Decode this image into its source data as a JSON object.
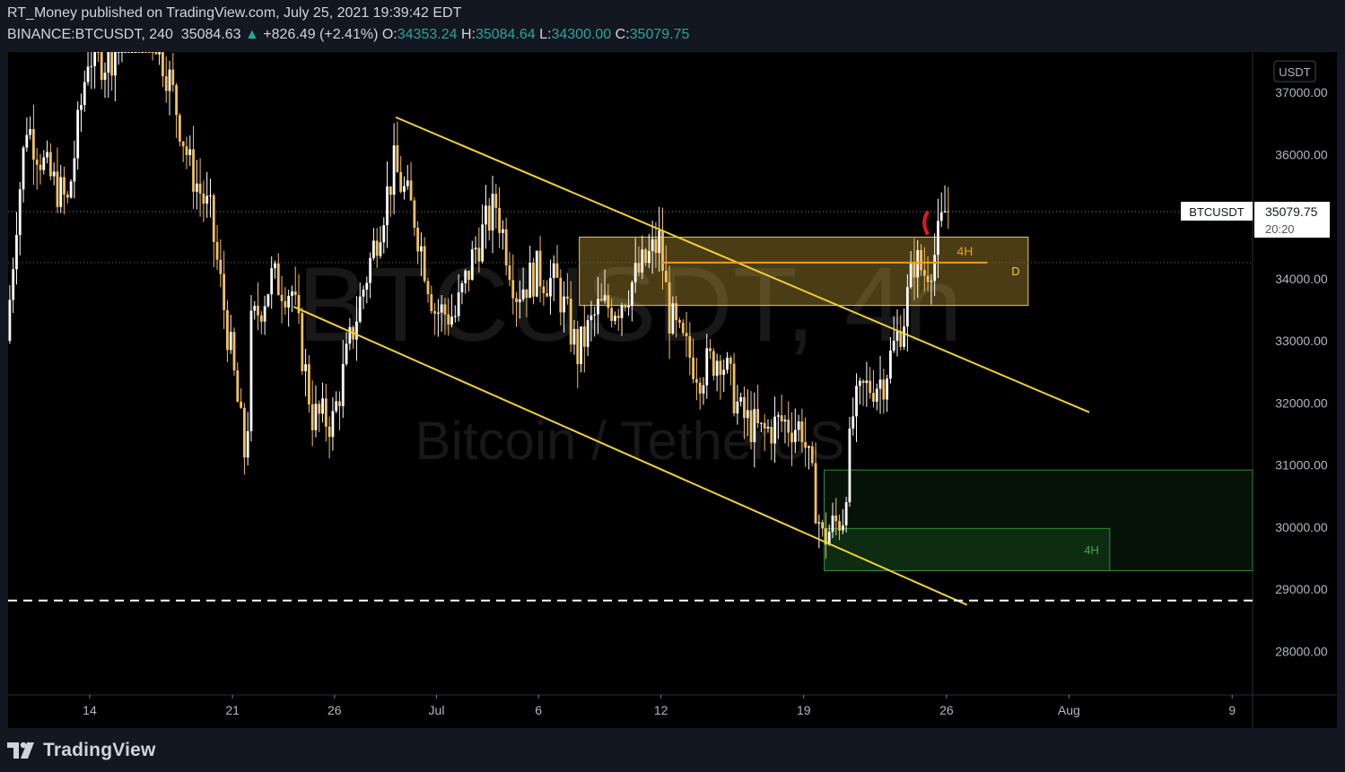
{
  "header": {
    "published_line": "RT_Money published on TradingView.com, July 25, 2021 19:39:42 EDT",
    "symbol_interval": "BINANCE:BTCUSDT, 240",
    "last": "35084.63",
    "change": "+826.49 (+2.41%)",
    "open_label": "O:",
    "open": "34353.24",
    "high_label": "H:",
    "high": "35084.64",
    "low_label": "L:",
    "low": "34300.00",
    "close_label": "C:",
    "close": "35079.75"
  },
  "footer": {
    "brand": "TradingView"
  },
  "colors": {
    "background": "#000000",
    "frame": "#131722",
    "candle": "#f5c060",
    "candle_light": "#ffffff",
    "trendline": "#f0d130",
    "resistance_zone": "#f5c842",
    "support_zone": "#2e8b3a",
    "level_line": "#f29a1e",
    "marker": "#e01a1a",
    "up_text": "#26a69a"
  },
  "chart_data": {
    "type": "candlestick",
    "symbol": "BTCUSDT",
    "watermark_symbol": "BTCUSDT, 4h",
    "watermark_name": "Bitcoin / TetherUS",
    "currency_badge": "USDT",
    "price_label": "35079.75",
    "price_label_symbol": "BTCUSDT",
    "countdown": "20:20",
    "ylim": [
      27300,
      37650
    ],
    "y_ticks": [
      28000,
      29000,
      30000,
      31000,
      32000,
      33000,
      34000,
      35000,
      36000,
      37000
    ],
    "y_tick_labels": [
      "28000.00",
      "29000.00",
      "30000.00",
      "31000.00",
      "32000.00",
      "33000.00",
      "34000.00",
      "35000.00",
      "36000.00",
      "37000.00"
    ],
    "x_start": "2021-06-10",
    "x_end": "2021-08-10",
    "x_ticks": [
      {
        "date": "2021-06-14",
        "label": "14"
      },
      {
        "date": "2021-06-21",
        "label": "21"
      },
      {
        "date": "2021-06-26",
        "label": "26"
      },
      {
        "date": "2021-07-01",
        "label": "Jul"
      },
      {
        "date": "2021-07-06",
        "label": "6"
      },
      {
        "date": "2021-07-12",
        "label": "12"
      },
      {
        "date": "2021-07-19",
        "label": "19"
      },
      {
        "date": "2021-07-26",
        "label": "26"
      },
      {
        "date": "2021-08-01",
        "label": "Aug"
      },
      {
        "date": "2021-08-09",
        "label": "9"
      }
    ],
    "price_path": [
      [
        "2021-06-10",
        33000
      ],
      [
        "2021-06-10T12:00",
        35000
      ],
      [
        "2021-06-11",
        36500
      ],
      [
        "2021-06-12",
        35700
      ],
      [
        "2021-06-13",
        35200
      ],
      [
        "2021-06-14",
        37600
      ],
      [
        "2021-06-15",
        37500
      ],
      [
        "2021-06-16",
        38200
      ],
      [
        "2021-06-17",
        38200
      ],
      [
        "2021-06-18",
        37200
      ],
      [
        "2021-06-19",
        35800
      ],
      [
        "2021-06-20",
        35000
      ],
      [
        "2021-06-21",
        32800
      ],
      [
        "2021-06-21T18:00",
        31000
      ],
      [
        "2021-06-22",
        33200
      ],
      [
        "2021-06-23",
        34000
      ],
      [
        "2021-06-24",
        33800
      ],
      [
        "2021-06-25",
        31800
      ],
      [
        "2021-06-26",
        31700
      ],
      [
        "2021-06-27",
        33200
      ],
      [
        "2021-06-28",
        34500
      ],
      [
        "2021-06-29",
        35800
      ],
      [
        "2021-06-30",
        35000
      ],
      [
        "2021-07-01",
        33500
      ],
      [
        "2021-07-02",
        33400
      ],
      [
        "2021-07-03",
        34500
      ],
      [
        "2021-07-04",
        35200
      ],
      [
        "2021-07-05",
        33800
      ],
      [
        "2021-07-06",
        34100
      ],
      [
        "2021-07-07",
        33900
      ],
      [
        "2021-07-08",
        32800
      ],
      [
        "2021-07-09",
        33500
      ],
      [
        "2021-07-10",
        33600
      ],
      [
        "2021-07-11",
        34100
      ],
      [
        "2021-07-12",
        34600
      ],
      [
        "2021-07-12T12:00",
        33400
      ],
      [
        "2021-07-13",
        33000
      ],
      [
        "2021-07-14",
        32500
      ],
      [
        "2021-07-15",
        32800
      ],
      [
        "2021-07-16",
        31800
      ],
      [
        "2021-07-17",
        31500
      ],
      [
        "2021-07-18",
        31700
      ],
      [
        "2021-07-19",
        31600
      ],
      [
        "2021-07-20",
        29800
      ],
      [
        "2021-07-21",
        30200
      ],
      [
        "2021-07-21T12:00",
        31800
      ],
      [
        "2021-07-22",
        32200
      ],
      [
        "2021-07-23",
        32400
      ],
      [
        "2021-07-24",
        33400
      ],
      [
        "2021-07-24T12:00",
        34300
      ],
      [
        "2021-07-25",
        34100
      ],
      [
        "2021-07-25T12:00",
        34400
      ],
      [
        "2021-07-26",
        35080
      ]
    ],
    "annotations": {
      "downtrend_line": {
        "from": [
          "2021-06-29",
          36600
        ],
        "to": [
          "2021-08-02",
          31850
        ]
      },
      "channel_lower_line": {
        "from": [
          "2021-06-24",
          33550
        ],
        "to": [
          "2021-07-27",
          28750
        ]
      },
      "resistance_zone": {
        "from": [
          "2021-07-08",
          34670
        ],
        "to": [
          "2021-07-30",
          33570
        ],
        "label": "D"
      },
      "level_4h": {
        "from": [
          "2021-07-12",
          34260
        ],
        "to": [
          "2021-07-28",
          34260
        ],
        "label": "4H"
      },
      "support_zone_outer": {
        "from": [
          "2021-07-20",
          30920
        ],
        "to": [
          "2021-08-10",
          29300
        ]
      },
      "support_zone_inner": {
        "from": [
          "2021-07-20",
          29980
        ],
        "to": [
          "2021-08-03",
          29300
        ],
        "label": "4H"
      },
      "horizontal_dashed": 28820,
      "last_price_dotted": 35079.75,
      "prev_close_dotted": 34260
    }
  }
}
